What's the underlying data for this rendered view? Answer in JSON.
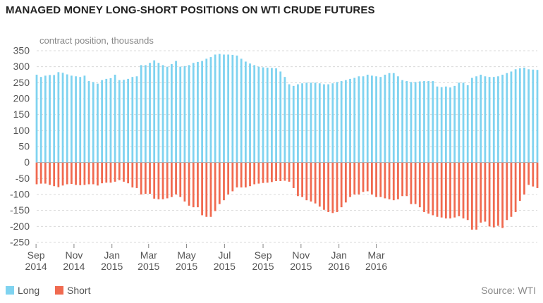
{
  "title": "MANAGED MONEY LONG-SHORT POSITIONS ON WTI CRUDE FUTURES",
  "source": "Source: WTI",
  "colors": {
    "long": "#7fd3f0",
    "short": "#f06a50",
    "grid": "#d9d9d9",
    "zero": "#aaaaaa"
  },
  "chart_data": {
    "type": "bar",
    "ylabel": "contract position, thousands",
    "ylim": [
      -250,
      350
    ],
    "yticks": [
      350,
      300,
      250,
      200,
      150,
      100,
      50,
      0,
      -50,
      -100,
      -150,
      -200,
      -250
    ],
    "grid": true,
    "legend_position": "bottom-left",
    "x_start": "2014-09-02",
    "x_step_days": 7,
    "xtick_labels": [
      {
        "date": "2014-09-01",
        "label": [
          "Sep",
          "2014"
        ]
      },
      {
        "date": "2014-11-01",
        "label": [
          "Nov",
          "2014"
        ]
      },
      {
        "date": "2015-01-01",
        "label": [
          "Jan",
          "2015"
        ]
      },
      {
        "date": "2015-03-01",
        "label": [
          "Mar",
          "2015"
        ]
      },
      {
        "date": "2015-05-01",
        "label": [
          "May",
          "2015"
        ]
      },
      {
        "date": "2015-07-01",
        "label": [
          "Jul",
          "2015"
        ]
      },
      {
        "date": "2015-09-01",
        "label": [
          "Sep",
          "2015"
        ]
      },
      {
        "date": "2015-11-01",
        "label": [
          "Nov",
          "2015"
        ]
      },
      {
        "date": "2016-01-01",
        "label": [
          "Jan",
          "2016"
        ]
      },
      {
        "date": "2016-03-01",
        "label": [
          "Mar",
          "2016"
        ]
      }
    ],
    "series": [
      {
        "name": "Long",
        "values": [
          275,
          268,
          272,
          274,
          274,
          283,
          281,
          276,
          272,
          270,
          268,
          272,
          255,
          252,
          247,
          258,
          262,
          264,
          275,
          258,
          259,
          262,
          268,
          270,
          305,
          305,
          312,
          320,
          312,
          305,
          300,
          308,
          318,
          300,
          302,
          305,
          312,
          315,
          318,
          325,
          330,
          338,
          340,
          338,
          338,
          337,
          335,
          325,
          316,
          310,
          305,
          300,
          298,
          297,
          296,
          295,
          285,
          268,
          245,
          240,
          245,
          248,
          250,
          250,
          250,
          248,
          245,
          245,
          248,
          252,
          255,
          258,
          262,
          265,
          270,
          270,
          275,
          272,
          270,
          268,
          275,
          280,
          280,
          270,
          258,
          255,
          252,
          252,
          254,
          255,
          255,
          255,
          238,
          236,
          238,
          235,
          240,
          250,
          250,
          242,
          265,
          270,
          275,
          270,
          268,
          268,
          270,
          275,
          280,
          285,
          292,
          295,
          297,
          292,
          291,
          290
        ]
      },
      {
        "name": "Short",
        "values": [
          -68,
          -66,
          -66,
          -70,
          -74,
          -77,
          -72,
          -68,
          -67,
          -70,
          -71,
          -70,
          -68,
          -68,
          -72,
          -65,
          -63,
          -63,
          -60,
          -55,
          -60,
          -65,
          -78,
          -80,
          -100,
          -98,
          -98,
          -113,
          -115,
          -115,
          -112,
          -108,
          -100,
          -108,
          -122,
          -135,
          -140,
          -140,
          -165,
          -170,
          -170,
          -152,
          -130,
          -118,
          -100,
          -90,
          -78,
          -78,
          -78,
          -74,
          -68,
          -66,
          -64,
          -63,
          -61,
          -58,
          -58,
          -57,
          -60,
          -80,
          -105,
          -108,
          -118,
          -122,
          -128,
          -138,
          -148,
          -155,
          -158,
          -155,
          -140,
          -125,
          -108,
          -100,
          -100,
          -92,
          -90,
          -100,
          -108,
          -108,
          -112,
          -115,
          -118,
          -115,
          -105,
          -105,
          -130,
          -130,
          -140,
          -155,
          -160,
          -165,
          -170,
          -172,
          -175,
          -175,
          -172,
          -168,
          -175,
          -180,
          -210,
          -210,
          -188,
          -185,
          -200,
          -203,
          -198,
          -205,
          -180,
          -170,
          -155,
          -120,
          -100,
          -70,
          -75,
          -80
        ]
      }
    ]
  },
  "legend": [
    {
      "label": "Long",
      "color": "#7fd3f0"
    },
    {
      "label": "Short",
      "color": "#f06a50"
    }
  ]
}
